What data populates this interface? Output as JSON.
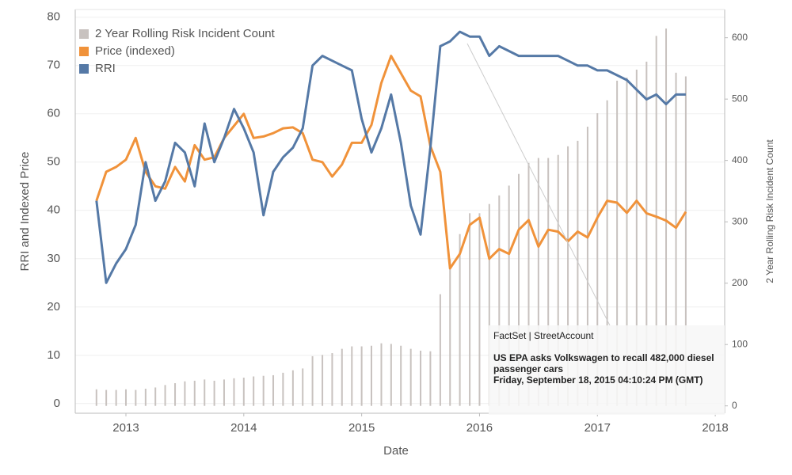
{
  "chart_data": {
    "type": "combo",
    "xlabel": "Date",
    "ylabel": "RRI and Indexed Price",
    "y2label": "2 Year Rolling Risk Incident Count",
    "x": [
      2012.75,
      2012.833,
      2012.917,
      2013,
      2013.083,
      2013.167,
      2013.25,
      2013.333,
      2013.417,
      2013.5,
      2013.583,
      2013.667,
      2013.75,
      2013.833,
      2013.917,
      2014,
      2014.083,
      2014.167,
      2014.25,
      2014.333,
      2014.417,
      2014.5,
      2014.583,
      2014.667,
      2014.75,
      2014.833,
      2014.917,
      2015,
      2015.083,
      2015.167,
      2015.25,
      2015.333,
      2015.417,
      2015.5,
      2015.583,
      2015.667,
      2015.75,
      2015.833,
      2015.917,
      2016,
      2016.083,
      2016.167,
      2016.25,
      2016.333,
      2016.417,
      2016.5,
      2016.583,
      2016.667,
      2016.75,
      2016.833,
      2016.917,
      2017,
      2017.083,
      2017.167,
      2017.25,
      2017.333,
      2017.417,
      2017.5,
      2017.583,
      2017.667,
      2017.75
    ],
    "series": [
      {
        "name": "2 Year Rolling Risk Incident Count",
        "type": "bar",
        "axis": "y2",
        "color": "#c8c2bf",
        "values": [
          27,
          26,
          26,
          27,
          26,
          28,
          30,
          34,
          37,
          40,
          41,
          43,
          41,
          43,
          45,
          46,
          48,
          49,
          50,
          54,
          58,
          61,
          81,
          83,
          86,
          93,
          97,
          97,
          98,
          102,
          101,
          98,
          93,
          90,
          89,
          182,
          239,
          280,
          314,
          314,
          329,
          343,
          359,
          378,
          396,
          404,
          404,
          409,
          423,
          432,
          455,
          477,
          498,
          530,
          535,
          548,
          561,
          603,
          615,
          543,
          537
        ]
      },
      {
        "name": "Price (indexed)",
        "type": "line",
        "color": "#f0923a",
        "values": [
          42,
          48,
          49,
          50.5,
          55,
          48,
          45,
          44.5,
          49,
          46,
          53.5,
          50.5,
          51,
          55,
          57.5,
          60,
          55,
          55.3,
          56,
          57,
          57.2,
          56,
          50.5,
          50,
          47,
          49.5,
          54,
          54,
          57.7,
          66.4,
          72,
          68.4,
          64.8,
          63.6,
          53.3,
          48,
          28,
          31,
          37,
          38.5,
          30,
          32,
          31,
          36,
          38,
          32.5,
          36,
          35.6,
          33.6,
          35.6,
          34.4,
          38.5,
          42,
          41.6,
          39.5,
          42,
          39.4,
          38.7,
          37.9,
          36.4,
          39.7
        ]
      },
      {
        "name": "RRI",
        "type": "line",
        "color": "#5579a6",
        "values": [
          42,
          25,
          29,
          32,
          37,
          50,
          42,
          46,
          54,
          52,
          45,
          58,
          50,
          55,
          61,
          57,
          52,
          39,
          48,
          51,
          53,
          57,
          70,
          72,
          71,
          70,
          69,
          59,
          52,
          57,
          64,
          54,
          41,
          35,
          53,
          74,
          75,
          77,
          76,
          76,
          72,
          74,
          73,
          72,
          72,
          72,
          72,
          72,
          71,
          70,
          70,
          69,
          69,
          68,
          67,
          65,
          63,
          64,
          62,
          64,
          64
        ]
      }
    ],
    "xlim": [
      2012.57,
      2018.08
    ],
    "xticks": [
      2013,
      2014,
      2015,
      2016,
      2017,
      2018
    ],
    "ylim": [
      -2,
      81.6
    ],
    "yticks": [
      0,
      10,
      20,
      30,
      40,
      50,
      60,
      70,
      80
    ],
    "y2lim": [
      -12,
      646
    ],
    "y2ticks": [
      0,
      100,
      200,
      300,
      400,
      500,
      600
    ],
    "grid": true,
    "legend": "top-left",
    "annotation": {
      "source": "FactSet | StreetAccount",
      "headline": "US EPA asks Volkswagen to recall 482,000 diesel passenger cars",
      "timestamp": "Friday, September 18, 2015 04:10:24 PM (GMT)"
    }
  }
}
